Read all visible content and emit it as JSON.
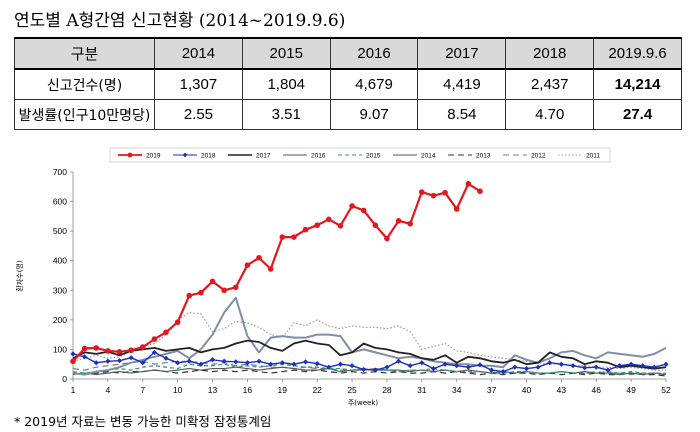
{
  "title": "연도별 A형간염 신고현황 (2014~2019.9.6)",
  "table": {
    "headers": [
      "구분",
      "2014",
      "2015",
      "2016",
      "2017",
      "2018",
      "2019.9.6"
    ],
    "rows": [
      {
        "label": "신고건수(명)",
        "values": [
          "1,307",
          "1,804",
          "4,679",
          "4,419",
          "2,437",
          "14,214"
        ]
      },
      {
        "label": "발생률(인구10만명당)",
        "values": [
          "2.55",
          "3.51",
          "9.07",
          "8.54",
          "4.70",
          "27.4"
        ]
      }
    ]
  },
  "footnote": "* 2019년 자료는 변동 가능한 미확정 잠정통계임",
  "chart_data": {
    "type": "line",
    "xlabel": "주(week)",
    "ylabel": "환자수(명)",
    "xlim": [
      1,
      52
    ],
    "ylim": [
      0,
      700
    ],
    "x_ticks": [
      1,
      4,
      7,
      10,
      13,
      16,
      19,
      22,
      25,
      28,
      31,
      34,
      37,
      40,
      43,
      46,
      49,
      52
    ],
    "y_ticks": [
      0,
      100,
      200,
      300,
      400,
      500,
      600,
      700
    ],
    "legend_position": "top",
    "series": [
      {
        "name": "2019",
        "color": "#e3171e",
        "dash": "",
        "width": 2.2,
        "marker": "circle",
        "values": [
          60,
          103,
          105,
          95,
          92,
          97,
          108,
          135,
          158,
          192,
          282,
          292,
          330,
          300,
          310,
          385,
          410,
          372,
          480,
          480,
          505,
          520,
          540,
          518,
          585,
          570,
          520,
          475,
          535,
          525,
          632,
          620,
          630,
          575,
          660,
          635
        ]
      },
      {
        "name": "2018",
        "color": "#1f2fbf",
        "dash": "",
        "width": 1.4,
        "marker": "diamond",
        "values": [
          85,
          75,
          55,
          60,
          62,
          72,
          55,
          90,
          70,
          55,
          60,
          50,
          65,
          60,
          58,
          55,
          60,
          50,
          55,
          50,
          58,
          52,
          40,
          50,
          45,
          32,
          30,
          40,
          60,
          45,
          55,
          35,
          50,
          45,
          40,
          48,
          30,
          25,
          40,
          35,
          40,
          55,
          50,
          45,
          38,
          40,
          30,
          45,
          50,
          45,
          40,
          50
        ]
      },
      {
        "name": "2017",
        "color": "#222222",
        "dash": "",
        "width": 1.8,
        "marker": "",
        "values": [
          70,
          90,
          85,
          92,
          80,
          95,
          100,
          105,
          95,
          100,
          105,
          90,
          100,
          105,
          120,
          130,
          125,
          105,
          95,
          120,
          130,
          120,
          115,
          80,
          90,
          120,
          105,
          100,
          90,
          85,
          70,
          65,
          80,
          55,
          75,
          70,
          60,
          55,
          65,
          50,
          55,
          90,
          75,
          70,
          50,
          60,
          55,
          40,
          45,
          40,
          35,
          40
        ]
      },
      {
        "name": "2016",
        "color": "#7f8fa6",
        "dash": "",
        "width": 2.0,
        "marker": "",
        "values": [
          20,
          15,
          25,
          30,
          40,
          55,
          65,
          75,
          85,
          95,
          70,
          100,
          150,
          225,
          275,
          145,
          90,
          140,
          145,
          140,
          140,
          150,
          150,
          145,
          90,
          100,
          90,
          80,
          70,
          75,
          70,
          60,
          55,
          50,
          50,
          45,
          45,
          40,
          80,
          65,
          55,
          70,
          90,
          95,
          80,
          70,
          90,
          85,
          80,
          75,
          85,
          105
        ]
      },
      {
        "name": "2015",
        "color": "#2b9a8a",
        "dash": "4,3",
        "width": 1.3,
        "marker": "",
        "values": [
          25,
          20,
          25,
          30,
          35,
          30,
          40,
          45,
          40,
          35,
          50,
          45,
          45,
          50,
          40,
          45,
          40,
          45,
          50,
          45,
          40,
          40,
          35,
          35,
          30,
          35,
          30,
          30,
          25,
          30,
          30,
          35,
          30,
          25,
          25,
          25,
          20,
          20,
          25,
          25,
          20,
          20,
          25,
          20,
          20,
          20,
          25,
          20,
          25,
          20,
          20,
          20
        ]
      },
      {
        "name": "2014",
        "color": "#555555",
        "dash": "",
        "width": 1.1,
        "marker": "",
        "values": [
          15,
          20,
          15,
          20,
          25,
          20,
          25,
          30,
          25,
          30,
          35,
          30,
          35,
          35,
          40,
          35,
          30,
          35,
          40,
          35,
          30,
          30,
          35,
          25,
          30,
          30,
          35,
          30,
          30,
          25,
          30,
          25,
          30,
          25,
          30,
          25,
          20,
          25,
          20,
          25,
          20,
          20,
          25,
          20,
          25,
          20,
          20,
          15,
          20,
          15,
          20,
          15
        ]
      },
      {
        "name": "2013",
        "color": "#333333",
        "dash": "6,4",
        "width": 1.2,
        "marker": "",
        "values": [
          20,
          15,
          20,
          25,
          20,
          25,
          25,
          30,
          25,
          20,
          25,
          30,
          25,
          30,
          25,
          30,
          25,
          20,
          25,
          30,
          25,
          30,
          25,
          20,
          25,
          20,
          25,
          20,
          25,
          20,
          20,
          25,
          20,
          25,
          20,
          15,
          20,
          15,
          20,
          20,
          15,
          20,
          15,
          20,
          15,
          20,
          15,
          15,
          20,
          15,
          15,
          10
        ]
      },
      {
        "name": "2012",
        "color": "#7a7a7a",
        "dash": "6,4",
        "width": 1.2,
        "marker": "",
        "values": [
          35,
          30,
          40,
          45,
          50,
          55,
          60,
          50,
          55,
          60,
          60,
          55,
          50,
          55,
          45,
          50,
          45,
          40,
          40,
          35,
          40,
          35,
          35,
          30,
          30,
          35,
          30,
          30,
          25,
          30,
          30,
          25,
          30,
          25,
          20,
          25,
          20,
          25,
          20,
          25,
          20,
          20,
          25,
          20,
          20,
          25,
          20,
          20,
          15,
          20,
          20,
          15
        ]
      },
      {
        "name": "2011",
        "color": "#9a9a9a",
        "dash": "1.5,2",
        "width": 1.2,
        "marker": "",
        "values": [
          60,
          70,
          80,
          70,
          75,
          95,
          110,
          120,
          150,
          200,
          225,
          220,
          160,
          170,
          195,
          190,
          175,
          150,
          140,
          190,
          180,
          200,
          180,
          170,
          180,
          175,
          175,
          170,
          180,
          160,
          100,
          110,
          120,
          95,
          90,
          80,
          75,
          70,
          65,
          60,
          55,
          50,
          50,
          45,
          45,
          40,
          40,
          35,
          40,
          35,
          30,
          30
        ]
      }
    ]
  }
}
